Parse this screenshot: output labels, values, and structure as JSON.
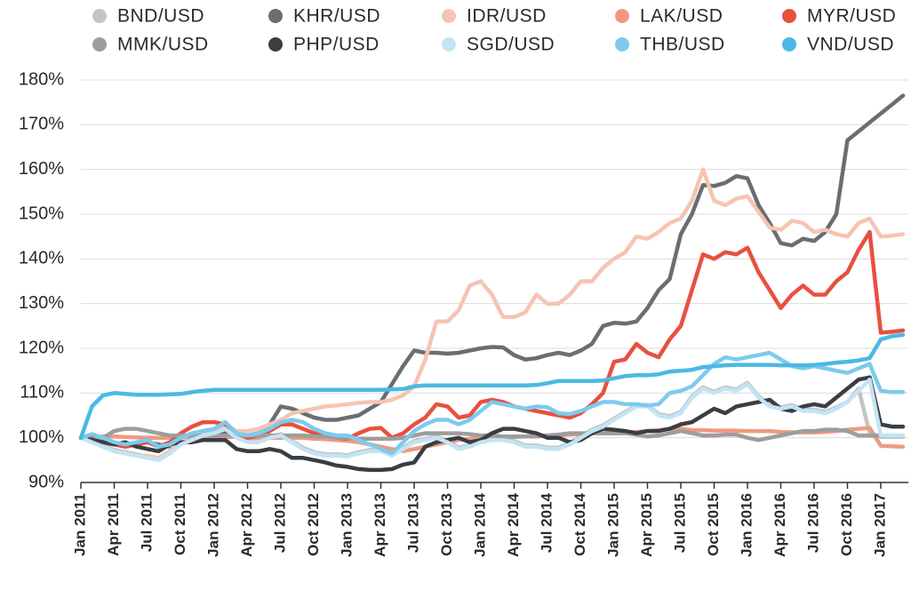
{
  "chart_data": {
    "type": "line",
    "categories": [
      "Jan 2011",
      null,
      null,
      "Apr 2011",
      null,
      null,
      "Jul 2011",
      null,
      null,
      "Oct 2011",
      null,
      null,
      "Jan 2012",
      null,
      null,
      "Apr 2012",
      null,
      null,
      "Jul 2012",
      null,
      null,
      "Oct 2012",
      null,
      null,
      "Jan 2013",
      null,
      null,
      "Apr 2013",
      null,
      null,
      "Jul 2013",
      null,
      null,
      "Oct 2013",
      null,
      null,
      "Jan 2014",
      null,
      null,
      "Apr 2014",
      null,
      null,
      "Jul 2014",
      null,
      null,
      "Oct 2014",
      null,
      null,
      "Jan 2015",
      null,
      null,
      "Apr 2015",
      null,
      null,
      "Jul 2015",
      null,
      null,
      "Oct 2015",
      null,
      null,
      "Jan 2016",
      null,
      null,
      "Apr 2016",
      null,
      null,
      "Jul 2016",
      null,
      null,
      "Oct 2016",
      null,
      null,
      "Jan 2017",
      null,
      null
    ],
    "ylim": [
      90,
      180
    ],
    "yticks": [
      {
        "value": 90,
        "label": "90%"
      },
      {
        "value": 100,
        "label": "100%"
      },
      {
        "value": 110,
        "label": "110%"
      },
      {
        "value": 120,
        "label": "120%"
      },
      {
        "value": 130,
        "label": "130%"
      },
      {
        "value": 140,
        "label": "140%"
      },
      {
        "value": 150,
        "label": "150%"
      },
      {
        "value": 160,
        "label": "160%"
      },
      {
        "value": 170,
        "label": "170%"
      },
      {
        "value": 180,
        "label": "180%"
      }
    ],
    "grid": true,
    "legend": "top",
    "series": [
      {
        "name": "BND/USD",
        "color": "#c4c4c4",
        "values": [
          100,
          99.2,
          98.3,
          97.3,
          96.8,
          96.3,
          95.8,
          95.3,
          96.8,
          98.8,
          99.8,
          100.8,
          101.3,
          102.3,
          100.3,
          99.3,
          99.3,
          100.3,
          100.8,
          99.3,
          97.8,
          96.8,
          96.3,
          96.3,
          96.1,
          96.8,
          97.3,
          97.3,
          96.3,
          97.8,
          99.3,
          99.8,
          100.3,
          99.3,
          97.8,
          98.3,
          99.3,
          99.8,
          99.8,
          99.3,
          98.3,
          98.3,
          97.8,
          97.8,
          98.8,
          100.3,
          101.8,
          102.8,
          104.3,
          105.8,
          107.3,
          107.3,
          105.3,
          104.8,
          105.8,
          109.3,
          111.3,
          110.3,
          111.3,
          110.8,
          112.3,
          109.3,
          107.3,
          106.8,
          107.3,
          106.3,
          106.3,
          105.8,
          106.8,
          108,
          111,
          101,
          100.2,
          100.2,
          100.2
        ]
      },
      {
        "name": "KHR/USD",
        "color": "#6a6e73",
        "values": [
          100,
          99.5,
          99,
          98.5,
          98,
          98.5,
          99,
          98.5,
          98,
          99,
          99.5,
          100,
          100.5,
          101,
          100.5,
          100.5,
          101,
          103,
          107,
          106.5,
          105.5,
          104.5,
          104,
          104,
          104.5,
          105,
          106.5,
          108,
          112,
          116,
          119.5,
          119,
          119,
          118.8,
          119,
          119.5,
          120,
          120.3,
          120.2,
          118.5,
          117.5,
          117.8,
          118.5,
          119,
          118.5,
          119.5,
          121,
          125,
          125.7,
          125.5,
          126,
          129,
          133,
          135.5,
          145.5,
          150,
          156.5,
          156.3,
          157,
          158.5,
          158,
          152,
          148,
          143.5,
          143,
          144.5,
          144,
          146,
          150,
          166.5,
          168.5,
          170.5,
          172.5,
          174.5,
          176.5
        ]
      },
      {
        "name": "IDR/USD",
        "color": "#f6c4b2",
        "values": [
          100,
          99,
          98,
          97,
          96.5,
          96,
          96,
          95.5,
          97,
          99.5,
          100.5,
          101.5,
          102,
          103,
          101.5,
          101.5,
          102,
          103,
          104,
          105.5,
          106,
          106.5,
          107,
          107.2,
          107.5,
          107.8,
          108,
          108,
          108.5,
          109.5,
          111.5,
          117.5,
          126,
          126,
          128.5,
          134,
          135,
          132,
          127,
          127,
          128,
          132,
          130,
          130,
          132,
          135,
          135,
          138,
          140,
          141.5,
          145,
          144.5,
          146,
          148,
          149,
          153,
          160,
          153,
          152,
          153.5,
          154,
          150.5,
          147,
          146.5,
          148.5,
          148,
          146,
          146.5,
          145.5,
          145,
          148,
          149,
          145,
          145.2,
          145.5
        ]
      },
      {
        "name": "LAK/USD",
        "color": "#ef9a80",
        "values": [
          100,
          100.2,
          100.3,
          100.3,
          100.2,
          100.1,
          100,
          100,
          100,
          100.2,
          100.3,
          100.3,
          100.3,
          100.2,
          100.2,
          100,
          100,
          100,
          100,
          100,
          100,
          99.8,
          99.7,
          99.5,
          99.3,
          99,
          98.5,
          98,
          97.5,
          97,
          97.5,
          98,
          98.5,
          99,
          99.5,
          99.8,
          100,
          100,
          100,
          100.2,
          100.3,
          100.5,
          100.5,
          100.5,
          100.7,
          100.8,
          101,
          101,
          101,
          101.2,
          101.3,
          101.5,
          101.7,
          102,
          102,
          101.7,
          101.7,
          101.6,
          101.6,
          101.6,
          101.5,
          101.5,
          101.5,
          101.3,
          101.2,
          101.2,
          101.2,
          101.3,
          101.5,
          101.8,
          102,
          102.2,
          98.2,
          98.1,
          98
        ]
      },
      {
        "name": "MYR/USD",
        "color": "#e8503f",
        "values": [
          100,
          100,
          99.5,
          98.5,
          98,
          98.5,
          99,
          98,
          99,
          101,
          102.5,
          103.5,
          103.5,
          103,
          101,
          100,
          100.5,
          101.5,
          103,
          103,
          102,
          101,
          100.5,
          100,
          99.8,
          101,
          102,
          102.2,
          100,
          101,
          103,
          104.5,
          107.5,
          107,
          104.5,
          105,
          108,
          108.5,
          108,
          107,
          106.5,
          106,
          105.5,
          105,
          104.5,
          105.5,
          107.5,
          110,
          117,
          117.5,
          121,
          119,
          118,
          122,
          125,
          133,
          141,
          140,
          141.5,
          141,
          142.5,
          137,
          133,
          129,
          132,
          134,
          132,
          132,
          135,
          137,
          142,
          146,
          123.5,
          123.7,
          124
        ]
      },
      {
        "name": "MMK/USD",
        "color": "#9d9d9d",
        "values": [
          100,
          99.5,
          100,
          101.5,
          102,
          102,
          101.5,
          101,
          100.5,
          100.5,
          100.5,
          100.5,
          100.5,
          100.5,
          100.5,
          100.5,
          100.5,
          100.5,
          100.5,
          100.5,
          100.5,
          100.3,
          100.3,
          100,
          100,
          99.8,
          99.8,
          99.8,
          99.8,
          100,
          100.5,
          101,
          101,
          101,
          101,
          100.8,
          100.5,
          100.5,
          100.3,
          100.3,
          100.3,
          100.3,
          100.5,
          100.7,
          101,
          101,
          101,
          101,
          101,
          101,
          100.7,
          100.3,
          100.5,
          101,
          101.5,
          101,
          100.5,
          100.5,
          100.7,
          100.7,
          100,
          99.5,
          100,
          100.5,
          101,
          101.5,
          101.5,
          101.8,
          101.8,
          101.5,
          100.5,
          100.5,
          100.5,
          100.5,
          100.5
        ]
      },
      {
        "name": "PHP/USD",
        "color": "#3a3e43",
        "values": [
          100,
          99.5,
          99,
          98.5,
          99,
          98,
          97.5,
          97,
          98.5,
          99,
          99,
          99.5,
          99.5,
          99.5,
          97.5,
          97,
          97,
          97.5,
          97,
          95.5,
          95.5,
          95,
          94.5,
          93.8,
          93.5,
          93,
          92.8,
          92.8,
          93,
          94,
          94.5,
          98,
          99,
          99.5,
          100,
          99,
          99.5,
          101,
          102,
          102,
          101.5,
          101,
          100,
          100,
          99,
          99.5,
          101,
          102,
          101.8,
          101.5,
          101,
          101.5,
          101.5,
          102,
          103,
          103.5,
          105,
          106.5,
          105.5,
          107,
          107.5,
          108,
          108.5,
          106.5,
          106,
          107,
          107.5,
          107,
          109,
          111,
          113,
          113.5,
          103,
          102.5,
          102.5
        ]
      },
      {
        "name": "SGD/USD",
        "color": "#c2e4f4",
        "values": [
          100,
          99,
          98,
          97,
          96.5,
          96,
          95.5,
          95,
          96.5,
          98.5,
          99.5,
          100.5,
          101,
          102,
          100,
          99,
          99,
          100,
          100.5,
          99,
          97.5,
          96.5,
          96,
          96,
          95.8,
          96.5,
          97,
          97,
          96,
          97.5,
          99,
          99.5,
          100,
          99,
          97.5,
          98,
          99,
          99.5,
          99.5,
          99,
          98,
          98,
          97.5,
          97.5,
          98.5,
          100,
          101.5,
          102.5,
          104,
          105.5,
          107,
          107,
          105,
          104.5,
          105.5,
          109,
          111,
          110,
          111,
          110.5,
          112,
          109,
          107,
          106.5,
          107,
          106,
          106,
          105.5,
          106.5,
          108,
          110.5,
          113,
          100.5,
          100.5,
          100.5
        ]
      },
      {
        "name": "THB/USD",
        "color": "#7ccbed",
        "values": [
          100,
          100.8,
          100,
          99,
          98.5,
          99,
          99.5,
          98,
          98.5,
          100,
          101,
          101.5,
          102,
          103.5,
          101,
          100.5,
          101,
          102,
          103.5,
          104,
          103.5,
          102,
          101,
          100.5,
          100.5,
          99.5,
          98.5,
          97.5,
          96.5,
          99,
          101.5,
          103,
          104,
          104,
          103,
          104,
          106,
          108,
          107.5,
          107,
          106.5,
          107,
          106.8,
          105.5,
          105.3,
          106,
          107,
          108,
          108,
          107.5,
          107.5,
          107.2,
          107.5,
          110,
          110.5,
          111.5,
          114,
          116.5,
          118,
          117.5,
          118,
          118.5,
          119,
          117.5,
          116,
          115.5,
          116,
          115.5,
          115,
          114.5,
          115.5,
          116.5,
          110.5,
          110.2,
          110.2
        ]
      },
      {
        "name": "VND/USD",
        "color": "#4bb9e3",
        "values": [
          100,
          107,
          109.5,
          110,
          109.8,
          109.6,
          109.6,
          109.6,
          109.7,
          109.8,
          110.2,
          110.5,
          110.7,
          110.7,
          110.7,
          110.7,
          110.7,
          110.7,
          110.7,
          110.7,
          110.7,
          110.7,
          110.7,
          110.7,
          110.7,
          110.7,
          110.7,
          110.7,
          110.8,
          110.9,
          111.5,
          111.7,
          111.7,
          111.7,
          111.7,
          111.7,
          111.7,
          111.7,
          111.7,
          111.7,
          111.7,
          111.8,
          112.2,
          112.7,
          112.7,
          112.7,
          112.7,
          112.8,
          113.3,
          113.8,
          114,
          114,
          114.2,
          114.8,
          115,
          115.2,
          115.8,
          116,
          116.2,
          116.3,
          116.3,
          116.3,
          116.3,
          116.2,
          116.2,
          116.2,
          116.3,
          116.5,
          116.8,
          117,
          117.3,
          117.8,
          122,
          122.7,
          123
        ]
      }
    ]
  }
}
